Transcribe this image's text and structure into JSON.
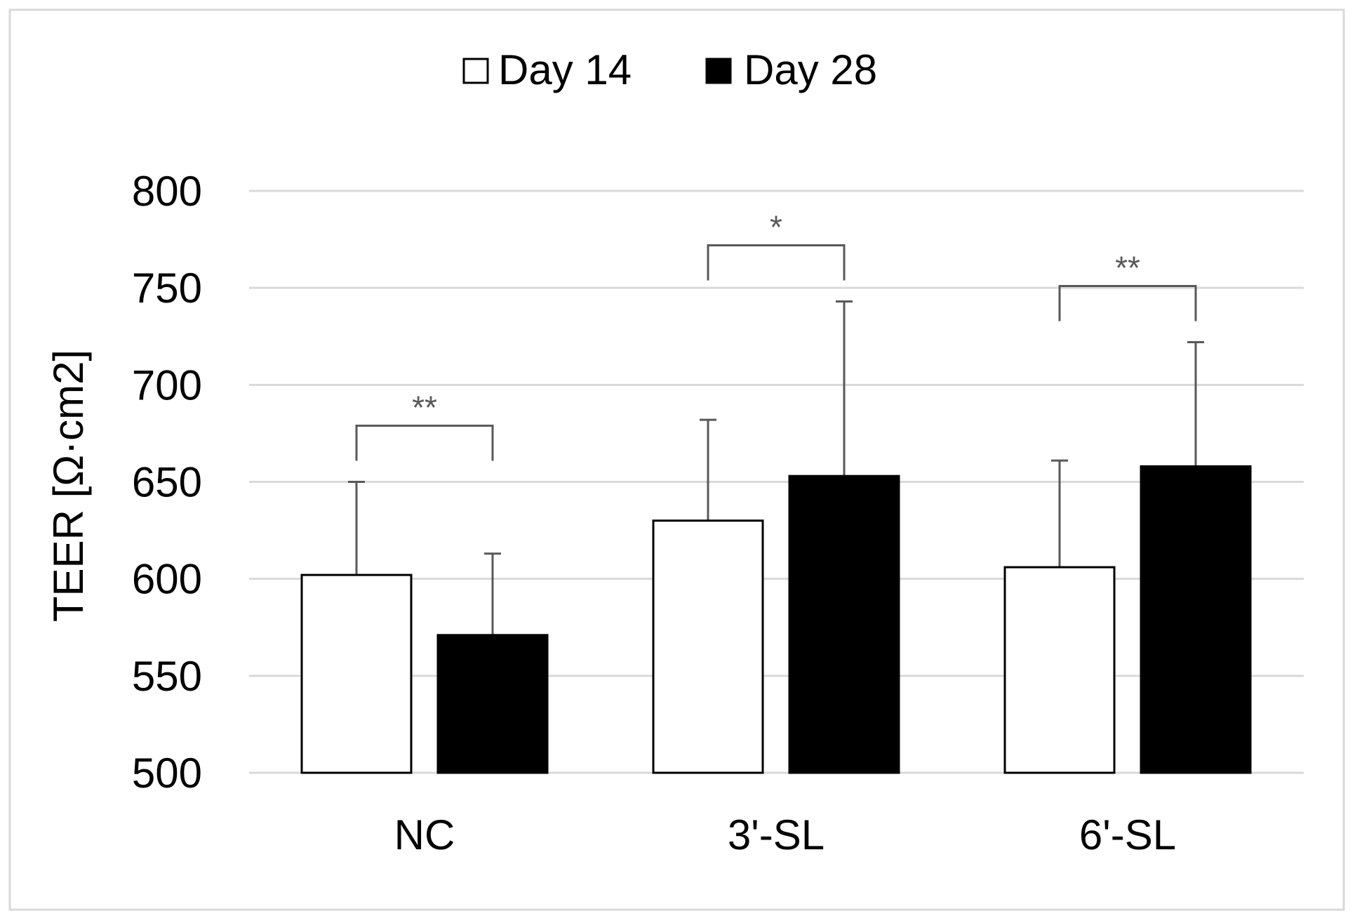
{
  "chart_data": {
    "type": "bar",
    "title": "",
    "xlabel": "",
    "ylabel": "TEER [Ω·cm2]",
    "ylim": [
      500,
      800
    ],
    "yticks": [
      500,
      550,
      600,
      650,
      700,
      750,
      800
    ],
    "grid": true,
    "legend_position": "top-center",
    "categories": [
      "NC",
      "3'-SL",
      "6'-SL"
    ],
    "series": [
      {
        "name": "Day 14",
        "fill": "#ffffff",
        "stroke": "#000000",
        "values": [
          602,
          630,
          606
        ],
        "errors": [
          48,
          52,
          55
        ]
      },
      {
        "name": "Day 28",
        "fill": "#000000",
        "stroke": "#000000",
        "values": [
          571,
          653,
          658
        ],
        "errors": [
          42,
          90,
          64
        ]
      }
    ],
    "significance": [
      {
        "category": "NC",
        "label": "**"
      },
      {
        "category": "3'-SL",
        "label": "*"
      },
      {
        "category": "6'-SL",
        "label": "**"
      }
    ]
  },
  "colors": {
    "grid": "#d9d9d9",
    "frame": "#d9d9d9",
    "axis_text": "#000000",
    "annotation": "#595959",
    "error_bar": "#595959"
  }
}
